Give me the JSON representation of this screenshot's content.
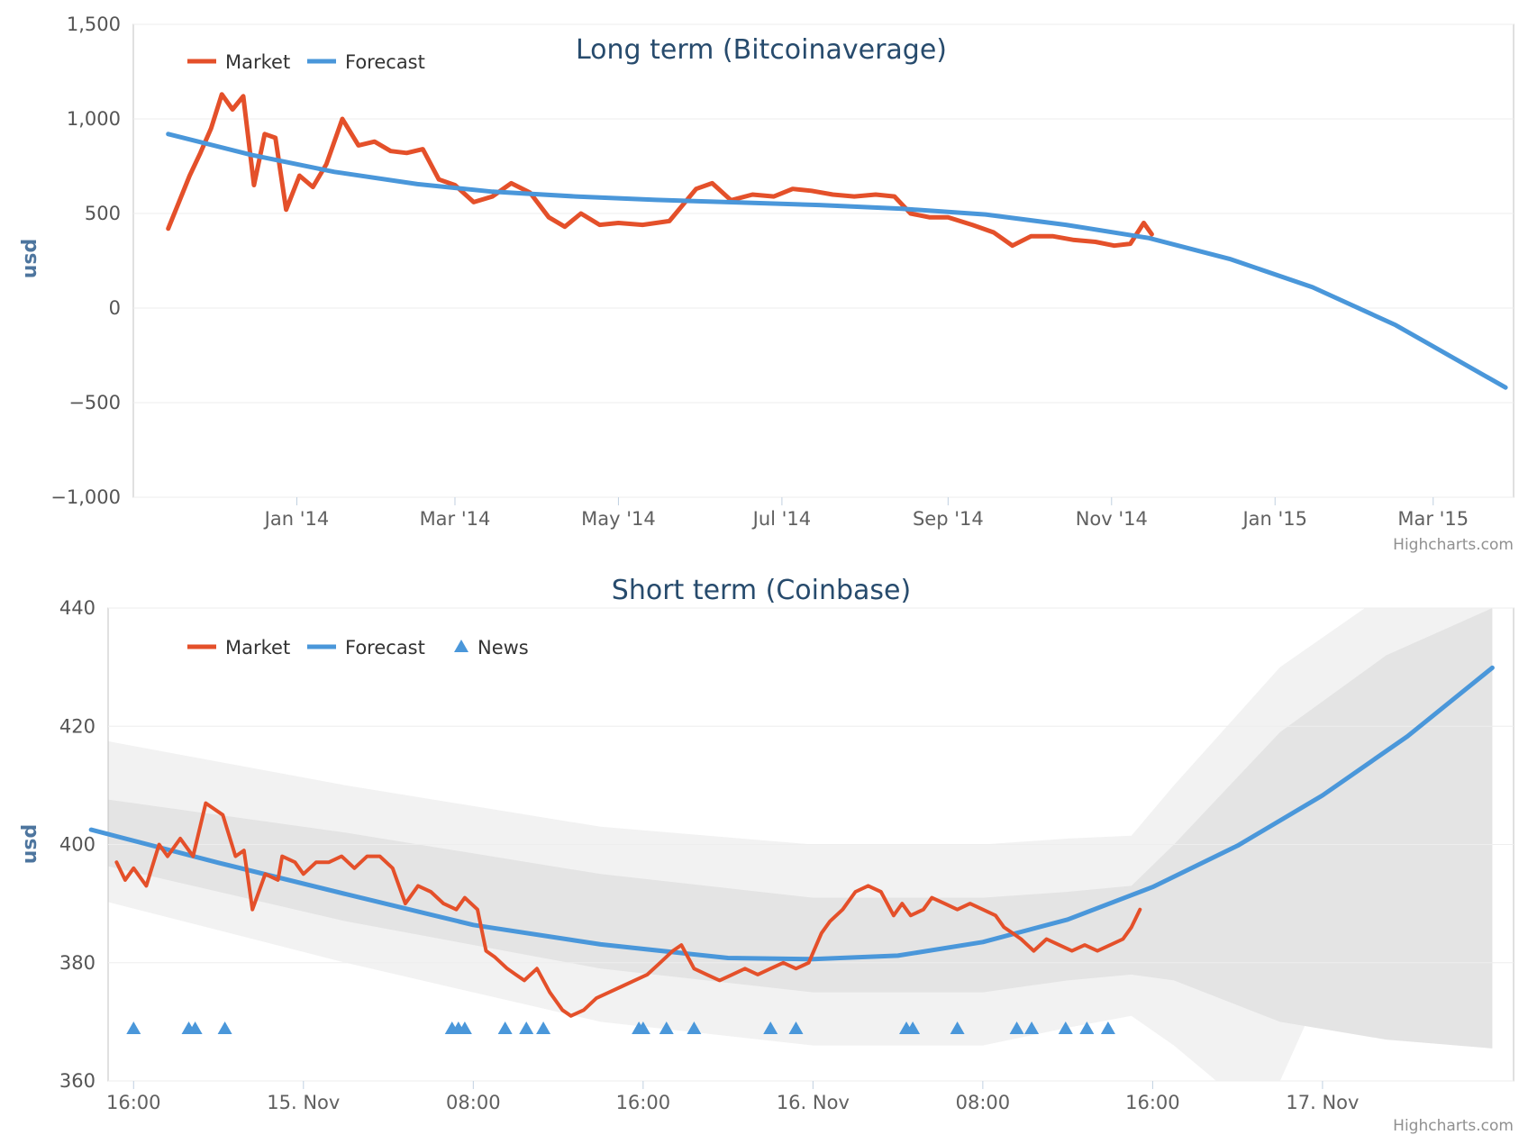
{
  "chart_data": [
    {
      "type": "line",
      "title": "Long term (Bitcoinaverage)",
      "ylabel": "usd",
      "xlabel": "",
      "ylim": [
        -1000,
        1500
      ],
      "yticks": [
        "1,500",
        "1,000",
        "500",
        "0",
        "−500",
        "−1,000"
      ],
      "ytick_values": [
        1500,
        1000,
        500,
        0,
        -500,
        -1000
      ],
      "xlim": [
        "2013-11-01",
        "2015-03-31"
      ],
      "xticks": [
        "Jan '14",
        "Mar '14",
        "May '14",
        "Jul '14",
        "Sep '14",
        "Nov '14",
        "Jan '15",
        "Mar '15"
      ],
      "xtick_dates": [
        "2014-01-01",
        "2014-03-01",
        "2014-05-01",
        "2014-07-01",
        "2014-09-01",
        "2014-11-01",
        "2015-01-01",
        "2015-03-01"
      ],
      "grid": true,
      "legend": "top-left",
      "credits": "Highcharts.com",
      "series": [
        {
          "name": "Market",
          "color": "#e4502a",
          "x": [
            "2013-11-14",
            "2013-11-18",
            "2013-11-22",
            "2013-11-26",
            "2013-11-30",
            "2013-12-04",
            "2013-12-08",
            "2013-12-12",
            "2013-12-16",
            "2013-12-20",
            "2013-12-24",
            "2013-12-28",
            "2014-01-02",
            "2014-01-07",
            "2014-01-12",
            "2014-01-18",
            "2014-01-24",
            "2014-01-30",
            "2014-02-05",
            "2014-02-11",
            "2014-02-17",
            "2014-02-23",
            "2014-03-01",
            "2014-03-08",
            "2014-03-15",
            "2014-03-22",
            "2014-03-29",
            "2014-04-05",
            "2014-04-11",
            "2014-04-17",
            "2014-04-24",
            "2014-05-01",
            "2014-05-10",
            "2014-05-20",
            "2014-05-30",
            "2014-06-05",
            "2014-06-12",
            "2014-06-20",
            "2014-06-28",
            "2014-07-05",
            "2014-07-12",
            "2014-07-20",
            "2014-07-28",
            "2014-08-05",
            "2014-08-12",
            "2014-08-18",
            "2014-08-25",
            "2014-09-01",
            "2014-09-10",
            "2014-09-18",
            "2014-09-25",
            "2014-10-02",
            "2014-10-10",
            "2014-10-18",
            "2014-10-26",
            "2014-11-02",
            "2014-11-08",
            "2014-11-13",
            "2014-11-16"
          ],
          "y": [
            420,
            560,
            700,
            820,
            950,
            1130,
            1050,
            1120,
            650,
            920,
            900,
            520,
            700,
            640,
            760,
            1000,
            860,
            880,
            830,
            820,
            840,
            680,
            650,
            560,
            590,
            660,
            610,
            480,
            430,
            500,
            440,
            450,
            440,
            460,
            630,
            660,
            570,
            600,
            590,
            630,
            620,
            600,
            590,
            600,
            590,
            500,
            480,
            480,
            440,
            400,
            330,
            380,
            380,
            360,
            350,
            330,
            340,
            450,
            390
          ]
        },
        {
          "name": "Forecast",
          "color": "#4a97da",
          "x": [
            "2013-11-14",
            "2013-12-15",
            "2014-01-15",
            "2014-02-15",
            "2014-03-15",
            "2014-04-15",
            "2014-05-15",
            "2014-06-15",
            "2014-07-15",
            "2014-08-15",
            "2014-09-15",
            "2014-10-15",
            "2014-11-15",
            "2014-12-15",
            "2015-01-15",
            "2015-02-15",
            "2015-03-28"
          ],
          "y": [
            920,
            810,
            720,
            655,
            615,
            590,
            572,
            558,
            545,
            525,
            495,
            440,
            370,
            260,
            110,
            -90,
            -420
          ]
        }
      ]
    },
    {
      "type": "line",
      "title": "Short term (Coinbase)",
      "ylabel": "usd",
      "xlabel": "",
      "ylim": [
        360,
        440
      ],
      "yticks": [
        "440",
        "420",
        "400",
        "380",
        "360"
      ],
      "ytick_values": [
        440,
        420,
        400,
        380,
        360
      ],
      "xlim": [
        14.8,
        81.0
      ],
      "xticks": [
        "16:00",
        "15. Nov",
        "08:00",
        "16:00",
        "16. Nov",
        "08:00",
        "16:00",
        "17. Nov"
      ],
      "xtick_hours": [
        16,
        24,
        32,
        40,
        48,
        56,
        64,
        72
      ],
      "grid": true,
      "legend": "top-left",
      "credits": "Highcharts.com",
      "series": [
        {
          "name": "Market",
          "color": "#e4502a",
          "x": [
            15.2,
            15.6,
            16.0,
            16.6,
            17.2,
            17.6,
            18.2,
            18.8,
            19.4,
            20.2,
            20.8,
            21.2,
            21.6,
            22.2,
            22.8,
            23.0,
            23.6,
            24.0,
            24.6,
            25.2,
            25.8,
            26.4,
            27.0,
            27.6,
            28.2,
            28.8,
            29.4,
            30.0,
            30.6,
            31.2,
            31.6,
            32.2,
            32.6,
            33.0,
            33.6,
            34.0,
            34.4,
            35.0,
            35.6,
            36.2,
            36.6,
            37.2,
            37.8,
            38.4,
            39.0,
            39.6,
            40.2,
            40.8,
            41.4,
            41.8,
            42.4,
            43.0,
            43.6,
            44.2,
            44.8,
            45.4,
            46.0,
            46.6,
            47.2,
            47.8,
            48.4,
            48.8,
            49.4,
            50.0,
            50.6,
            51.2,
            51.8,
            52.2,
            52.6,
            53.2,
            53.6,
            54.2,
            54.8,
            55.4,
            56.0,
            56.6,
            57.0,
            57.4,
            57.8,
            58.4,
            59.0,
            59.6,
            60.2,
            60.8,
            61.4,
            62.0,
            62.6,
            63.0,
            63.4
          ],
          "y": [
            397,
            394,
            396,
            393,
            400,
            398,
            401,
            398,
            407,
            405,
            398,
            399,
            389,
            395,
            394,
            398,
            397,
            395,
            397,
            397,
            398,
            396,
            398,
            398,
            396,
            390,
            393,
            392,
            390,
            389,
            391,
            389,
            382,
            381,
            379,
            378,
            377,
            379,
            375,
            372,
            371,
            372,
            374,
            375,
            376,
            377,
            378,
            380,
            382,
            383,
            379,
            378,
            377,
            378,
            379,
            378,
            379,
            380,
            379,
            380,
            385,
            387,
            389,
            392,
            393,
            392,
            388,
            390,
            388,
            389,
            391,
            390,
            389,
            390,
            389,
            388,
            386,
            385,
            384,
            382,
            384,
            383,
            382,
            383,
            382,
            383,
            384,
            386,
            389
          ]
        },
        {
          "name": "Forecast",
          "color": "#4a97da",
          "x": [
            14.0,
            20.0,
            26.0,
            32.0,
            38.0,
            44.0,
            48.0,
            52.0,
            56.0,
            60.0,
            64.0,
            68.0,
            72.0,
            76.0,
            80.0
          ],
          "y": [
            402.5,
            396.9,
            391.6,
            386.4,
            383.1,
            380.8,
            380.6,
            381.2,
            383.5,
            387.3,
            392.8,
            399.8,
            408.3,
            418.3,
            429.9
          ]
        },
        {
          "name": "News",
          "type": "scatter",
          "marker": "triangle",
          "color": "#4a97da",
          "y_value": 369,
          "x": [
            16.0,
            18.6,
            18.9,
            20.3,
            31.0,
            31.3,
            31.6,
            33.5,
            34.5,
            35.3,
            39.8,
            40.0,
            41.1,
            42.4,
            46.0,
            47.2,
            52.4,
            52.7,
            54.8,
            57.6,
            58.3,
            59.9,
            60.9,
            61.9
          ]
        }
      ],
      "bands": {
        "outer_color": "#f2f2f2",
        "inner_color": "#e4e4e4",
        "inner_upper_x": [
          14.0,
          26.0,
          38.0,
          48.0,
          56.0,
          60.0,
          63.0,
          65.0,
          70.0,
          75.0,
          80.0
        ],
        "inner_upper_y": [
          408.0,
          402.0,
          395.0,
          391.0,
          391.0,
          392.0,
          393.0,
          400.0,
          419.0,
          432.0,
          440.0
        ],
        "inner_lower_x": [
          14.0,
          26.0,
          38.0,
          48.0,
          56.0,
          60.0,
          63.0,
          65.0,
          70.0,
          75.0,
          80.0
        ],
        "inner_lower_y": [
          397.0,
          387.0,
          379.0,
          375.0,
          375.0,
          377.0,
          378.0,
          377.0,
          370.0,
          367.0,
          365.5
        ],
        "outer_upper_x": [
          14.0,
          26.0,
          38.0,
          48.0,
          56.0,
          60.0,
          63.0,
          65.0,
          70.0,
          74.0,
          80.0
        ],
        "outer_upper_y": [
          418.0,
          410.0,
          403.0,
          400.0,
          400.0,
          401.0,
          401.5,
          410.0,
          430.0,
          440.0,
          440.0
        ],
        "outer_lower_x": [
          14.0,
          26.0,
          38.0,
          48.0,
          56.0,
          60.0,
          63.0,
          65.0,
          67.0,
          70.0
        ],
        "outer_lower_y": [
          391.0,
          380.0,
          370.0,
          366.0,
          366.0,
          369.0,
          371.0,
          366.0,
          360.0,
          360.0
        ]
      }
    }
  ]
}
